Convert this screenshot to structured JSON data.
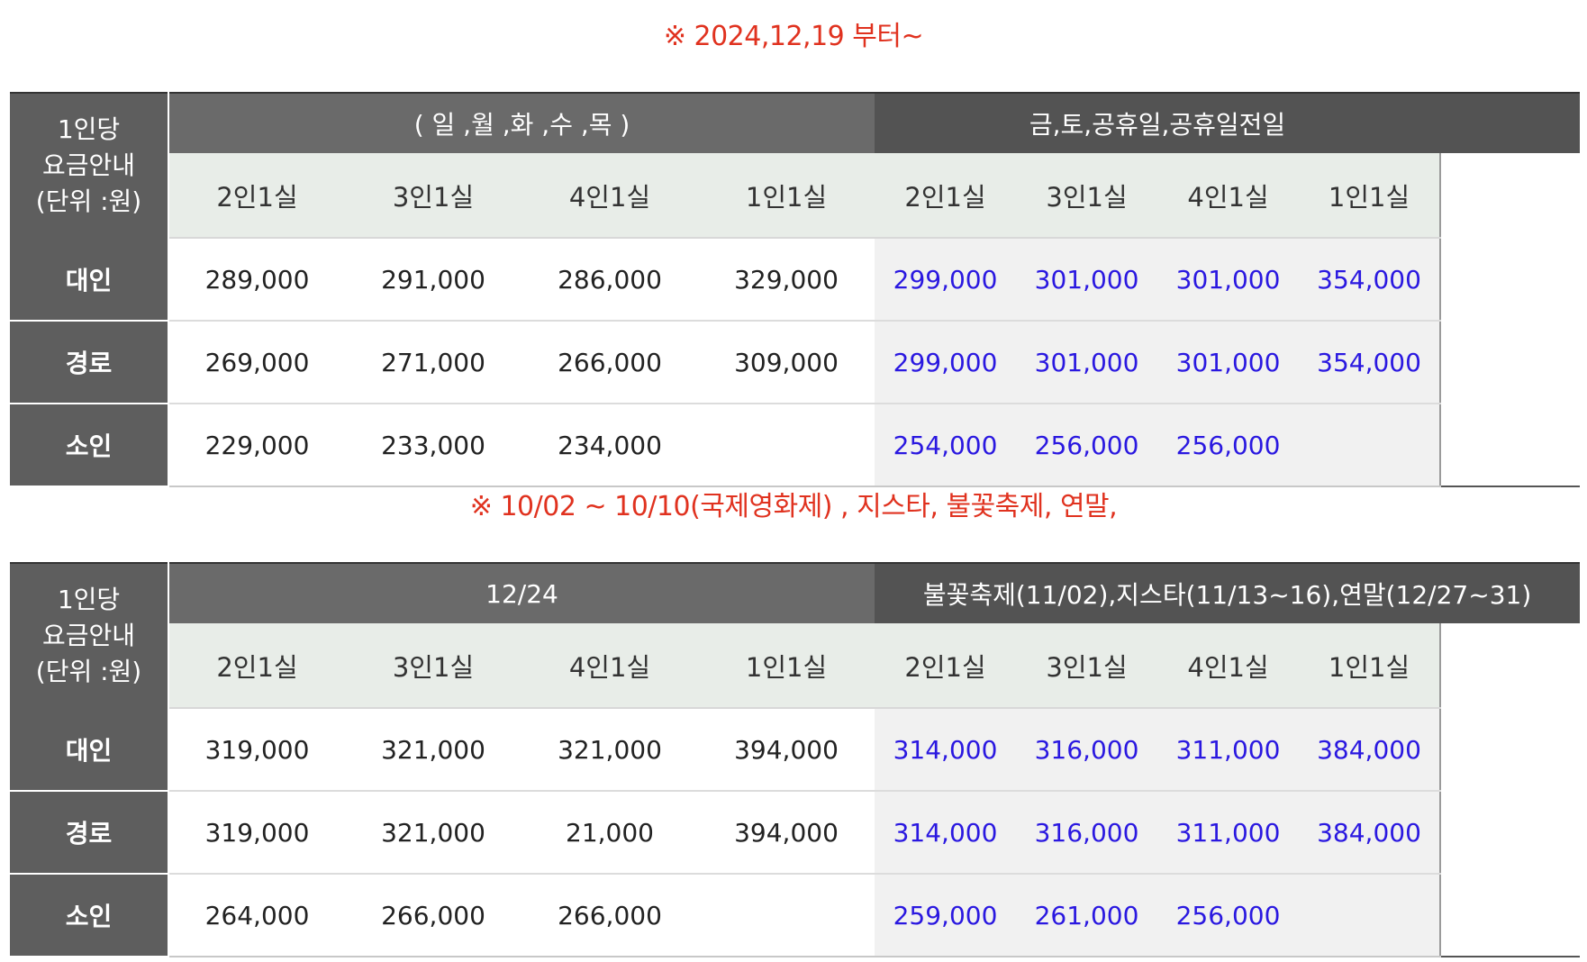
{
  "notice_1": "※  2024,12,19 부터~",
  "notice_2": "※  10/02 ~ 10/10(국제영화제) , 지스타, 불꽃축제, 연말,",
  "colors": {
    "notice": "#e0321f",
    "weekend_price": "#2a18e0",
    "header_dark": "#535353",
    "header_mid": "#6a6a6a",
    "room_header_bg": "#e8ede8"
  },
  "table_1": {
    "corner_lines": [
      "1인당",
      "요금안내",
      "(단위 :원)"
    ],
    "group_left": "( 일 ,월 ,화 ,수 ,목 )",
    "group_right": "금,토,공휴일,공휴일전일",
    "room_types": [
      "2인1실",
      "3인1실",
      "4인1실",
      "1인1실",
      "2인1실",
      "3인1실",
      "4인1실",
      "1인1실"
    ],
    "rows": [
      {
        "label": "대인",
        "values": [
          "289,000",
          "291,000",
          "286,000",
          "329,000",
          "299,000",
          "301,000",
          "301,000",
          "354,000"
        ]
      },
      {
        "label": "경로",
        "values": [
          "269,000",
          "271,000",
          "266,000",
          "309,000",
          "299,000",
          "301,000",
          "301,000",
          "354,000"
        ]
      },
      {
        "label": "소인",
        "values": [
          "229,000",
          "233,000",
          "234,000",
          "",
          "254,000",
          "256,000",
          "256,000",
          ""
        ]
      }
    ]
  },
  "table_2": {
    "corner_lines": [
      "1인당",
      "요금안내",
      "(단위 :원)"
    ],
    "group_left": "12/24",
    "group_right": "불꽃축제(11/02),지스타(11/13~16),연말(12/27~31)",
    "room_types": [
      "2인1실",
      "3인1실",
      "4인1실",
      "1인1실",
      "2인1실",
      "3인1실",
      "4인1실",
      "1인1실"
    ],
    "rows": [
      {
        "label": "대인",
        "values": [
          "319,000",
          "321,000",
          "321,000",
          "394,000",
          "314,000",
          "316,000",
          "311,000",
          "384,000"
        ]
      },
      {
        "label": "경로",
        "values": [
          "319,000",
          "321,000",
          "21,000",
          "394,000",
          "314,000",
          "316,000",
          "311,000",
          "384,000"
        ]
      },
      {
        "label": "소인",
        "values": [
          "264,000",
          "266,000",
          "266,000",
          "",
          "259,000",
          "261,000",
          "256,000",
          ""
        ]
      }
    ]
  }
}
